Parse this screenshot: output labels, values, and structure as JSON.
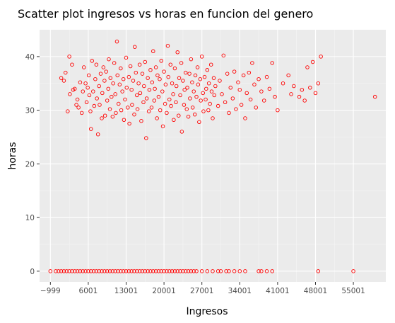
{
  "chart_data": {
    "type": "scatter",
    "title": "Scatter plot ingresos vs horas en funcion del genero",
    "xlabel": "Ingresos",
    "ylabel": "horas",
    "xlim": [
      -3000,
      61000
    ],
    "ylim": [
      -2,
      45
    ],
    "x_ticks": [
      -999,
      6001,
      13001,
      20001,
      27001,
      34001,
      41001,
      48001,
      55001
    ],
    "x_tick_labels": [
      "−999",
      "6001",
      "13001",
      "20001",
      "27001",
      "34001",
      "41001",
      "48001",
      "55001"
    ],
    "y_ticks": [
      0,
      10,
      20,
      30,
      40
    ],
    "y_tick_labels": [
      "0",
      "10",
      "20",
      "30",
      "40"
    ],
    "grid": true,
    "legend": "none",
    "marker_color": "#ff0000",
    "marker_style": "hollow-circle",
    "panel_background": "#ebebeb",
    "points": [
      [
        1000,
        36.0
      ],
      [
        1500,
        35.5
      ],
      [
        1800,
        37.0
      ],
      [
        2200,
        29.8
      ],
      [
        2500,
        40.0
      ],
      [
        2600,
        33.0
      ],
      [
        3000,
        38.5
      ],
      [
        3200,
        33.8
      ],
      [
        3500,
        34.0
      ],
      [
        3800,
        31.0
      ],
      [
        4000,
        32.0
      ],
      [
        4200,
        30.5
      ],
      [
        4500,
        35.2
      ],
      [
        4800,
        29.5
      ],
      [
        5000,
        33.5
      ],
      [
        5200,
        38.0
      ],
      [
        5500,
        35.0
      ],
      [
        5700,
        31.5
      ],
      [
        5900,
        34.2
      ],
      [
        6100,
        36.5
      ],
      [
        6200,
        32.8
      ],
      [
        6400,
        29.8
      ],
      [
        6500,
        26.5
      ],
      [
        6700,
        39.2
      ],
      [
        6900,
        33.5
      ],
      [
        7100,
        30.8
      ],
      [
        7300,
        35.8
      ],
      [
        7500,
        38.5
      ],
      [
        7600,
        32.2
      ],
      [
        7800,
        25.5
      ],
      [
        8000,
        34.5
      ],
      [
        8100,
        31.0
      ],
      [
        8300,
        36.8
      ],
      [
        8500,
        28.5
      ],
      [
        8600,
        33.2
      ],
      [
        8800,
        38.0
      ],
      [
        9000,
        35.5
      ],
      [
        9100,
        29.0
      ],
      [
        9300,
        37.2
      ],
      [
        9500,
        31.8
      ],
      [
        9700,
        34.0
      ],
      [
        9800,
        39.5
      ],
      [
        10000,
        30.2
      ],
      [
        10100,
        36.0
      ],
      [
        10300,
        32.5
      ],
      [
        10500,
        28.8
      ],
      [
        10600,
        35.0
      ],
      [
        10800,
        38.8
      ],
      [
        11000,
        33.0
      ],
      [
        11100,
        29.5
      ],
      [
        11300,
        42.8
      ],
      [
        11400,
        36.5
      ],
      [
        11600,
        31.2
      ],
      [
        11800,
        34.8
      ],
      [
        12000,
        37.8
      ],
      [
        12100,
        30.0
      ],
      [
        12300,
        33.5
      ],
      [
        12500,
        35.8
      ],
      [
        12600,
        28.2
      ],
      [
        12800,
        32.0
      ],
      [
        13000,
        39.8
      ],
      [
        13100,
        34.2
      ],
      [
        13300,
        30.5
      ],
      [
        13500,
        36.2
      ],
      [
        13600,
        27.5
      ],
      [
        13800,
        38.2
      ],
      [
        14000,
        33.8
      ],
      [
        14100,
        31.0
      ],
      [
        14300,
        35.5
      ],
      [
        14500,
        29.2
      ],
      [
        14600,
        41.8
      ],
      [
        14800,
        37.0
      ],
      [
        15000,
        32.8
      ],
      [
        15100,
        30.2
      ],
      [
        15300,
        35.0
      ],
      [
        15500,
        38.5
      ],
      [
        15600,
        33.2
      ],
      [
        15800,
        28.0
      ],
      [
        16000,
        36.8
      ],
      [
        16200,
        31.5
      ],
      [
        16300,
        34.5
      ],
      [
        16500,
        39.0
      ],
      [
        16700,
        24.8
      ],
      [
        16800,
        32.2
      ],
      [
        17000,
        36.0
      ],
      [
        17200,
        29.8
      ],
      [
        17300,
        33.8
      ],
      [
        17500,
        37.5
      ],
      [
        17700,
        30.5
      ],
      [
        17800,
        35.2
      ],
      [
        18000,
        41.0
      ],
      [
        18200,
        31.8
      ],
      [
        18300,
        34.0
      ],
      [
        18500,
        38.0
      ],
      [
        18700,
        28.5
      ],
      [
        18800,
        36.5
      ],
      [
        19000,
        32.5
      ],
      [
        19200,
        35.8
      ],
      [
        19300,
        30.0
      ],
      [
        19500,
        39.2
      ],
      [
        19700,
        33.5
      ],
      [
        19800,
        27.0
      ],
      [
        20000,
        37.2
      ],
      [
        20200,
        31.2
      ],
      [
        20300,
        34.8
      ],
      [
        20500,
        29.5
      ],
      [
        20700,
        42.0
      ],
      [
        20800,
        36.2
      ],
      [
        21000,
        32.0
      ],
      [
        21200,
        38.5
      ],
      [
        21300,
        30.8
      ],
      [
        21500,
        35.0
      ],
      [
        21700,
        33.0
      ],
      [
        21800,
        28.2
      ],
      [
        22000,
        37.8
      ],
      [
        22200,
        31.5
      ],
      [
        22300,
        34.5
      ],
      [
        22500,
        40.8
      ],
      [
        22700,
        29.0
      ],
      [
        22800,
        36.0
      ],
      [
        23000,
        32.8
      ],
      [
        23200,
        38.8
      ],
      [
        23300,
        26.0
      ],
      [
        23500,
        35.5
      ],
      [
        23700,
        31.0
      ],
      [
        23800,
        33.8
      ],
      [
        24000,
        37.0
      ],
      [
        24200,
        30.2
      ],
      [
        24300,
        34.2
      ],
      [
        24500,
        28.8
      ],
      [
        24700,
        36.8
      ],
      [
        24800,
        32.2
      ],
      [
        25000,
        39.5
      ],
      [
        25200,
        35.2
      ],
      [
        25300,
        30.5
      ],
      [
        25500,
        33.5
      ],
      [
        25700,
        29.2
      ],
      [
        25800,
        36.5
      ],
      [
        26000,
        32.5
      ],
      [
        26200,
        38.0
      ],
      [
        26300,
        34.8
      ],
      [
        26500,
        27.8
      ],
      [
        26700,
        35.8
      ],
      [
        26800,
        31.8
      ],
      [
        27000,
        40.0
      ],
      [
        27200,
        33.2
      ],
      [
        27300,
        29.8
      ],
      [
        27500,
        36.2
      ],
      [
        27700,
        32.0
      ],
      [
        27800,
        34.0
      ],
      [
        28000,
        37.5
      ],
      [
        28200,
        30.0
      ],
      [
        28300,
        35.0
      ],
      [
        28500,
        31.2
      ],
      [
        28700,
        38.5
      ],
      [
        28800,
        33.5
      ],
      [
        29000,
        28.5
      ],
      [
        29200,
        36.0
      ],
      [
        29300,
        32.8
      ],
      [
        29500,
        34.5
      ],
      [
        30000,
        30.8
      ],
      [
        30300,
        35.5
      ],
      [
        30700,
        33.0
      ],
      [
        31000,
        40.2
      ],
      [
        31300,
        31.5
      ],
      [
        31700,
        36.8
      ],
      [
        32000,
        29.5
      ],
      [
        32300,
        34.2
      ],
      [
        32700,
        32.2
      ],
      [
        33000,
        37.2
      ],
      [
        33300,
        30.2
      ],
      [
        33700,
        35.2
      ],
      [
        34000,
        33.8
      ],
      [
        34300,
        31.0
      ],
      [
        34700,
        36.5
      ],
      [
        35000,
        28.5
      ],
      [
        35300,
        33.2
      ],
      [
        35700,
        37.0
      ],
      [
        36000,
        32.0
      ],
      [
        36300,
        38.8
      ],
      [
        36700,
        34.8
      ],
      [
        37000,
        30.5
      ],
      [
        37500,
        35.8
      ],
      [
        38000,
        33.5
      ],
      [
        38500,
        31.8
      ],
      [
        39000,
        36.2
      ],
      [
        39500,
        34.0
      ],
      [
        40000,
        38.8
      ],
      [
        40500,
        32.5
      ],
      [
        41000,
        30.0
      ],
      [
        42000,
        35.0
      ],
      [
        43000,
        36.5
      ],
      [
        43500,
        33.0
      ],
      [
        44000,
        34.5
      ],
      [
        45000,
        32.5
      ],
      [
        45500,
        33.8
      ],
      [
        46000,
        31.8
      ],
      [
        46500,
        38.0
      ],
      [
        47000,
        34.2
      ],
      [
        47500,
        39.0
      ],
      [
        48000,
        33.2
      ],
      [
        48500,
        35.0
      ],
      [
        49000,
        40.0
      ],
      [
        59000,
        32.5
      ],
      [
        -999,
        0
      ],
      [
        0,
        0
      ],
      [
        500,
        0
      ],
      [
        1000,
        0
      ],
      [
        1500,
        0
      ],
      [
        2000,
        0
      ],
      [
        2500,
        0
      ],
      [
        3000,
        0
      ],
      [
        3500,
        0
      ],
      [
        4000,
        0
      ],
      [
        4500,
        0
      ],
      [
        5000,
        0
      ],
      [
        5500,
        0
      ],
      [
        6000,
        0
      ],
      [
        6500,
        0
      ],
      [
        7000,
        0
      ],
      [
        7500,
        0
      ],
      [
        8000,
        0
      ],
      [
        8500,
        0
      ],
      [
        9000,
        0
      ],
      [
        9500,
        0
      ],
      [
        10000,
        0
      ],
      [
        10500,
        0
      ],
      [
        11000,
        0
      ],
      [
        11500,
        0
      ],
      [
        12000,
        0
      ],
      [
        12500,
        0
      ],
      [
        13000,
        0
      ],
      [
        13500,
        0
      ],
      [
        14000,
        0
      ],
      [
        14500,
        0
      ],
      [
        15000,
        0
      ],
      [
        15500,
        0
      ],
      [
        16000,
        0
      ],
      [
        16500,
        0
      ],
      [
        17000,
        0
      ],
      [
        17500,
        0
      ],
      [
        18000,
        0
      ],
      [
        18500,
        0
      ],
      [
        19000,
        0
      ],
      [
        19500,
        0
      ],
      [
        20000,
        0
      ],
      [
        20500,
        0
      ],
      [
        21000,
        0
      ],
      [
        21500,
        0
      ],
      [
        22000,
        0
      ],
      [
        22500,
        0
      ],
      [
        23000,
        0
      ],
      [
        23500,
        0
      ],
      [
        24000,
        0
      ],
      [
        24500,
        0
      ],
      [
        25000,
        0
      ],
      [
        25500,
        0
      ],
      [
        26000,
        0
      ],
      [
        27000,
        0
      ],
      [
        28000,
        0
      ],
      [
        29000,
        0
      ],
      [
        30000,
        0
      ],
      [
        30500,
        0
      ],
      [
        31500,
        0
      ],
      [
        32000,
        0
      ],
      [
        33000,
        0
      ],
      [
        34000,
        0
      ],
      [
        35000,
        0
      ],
      [
        37500,
        0
      ],
      [
        38000,
        0
      ],
      [
        39000,
        0
      ],
      [
        40000,
        0
      ],
      [
        48500,
        0
      ],
      [
        55000,
        0
      ]
    ]
  }
}
